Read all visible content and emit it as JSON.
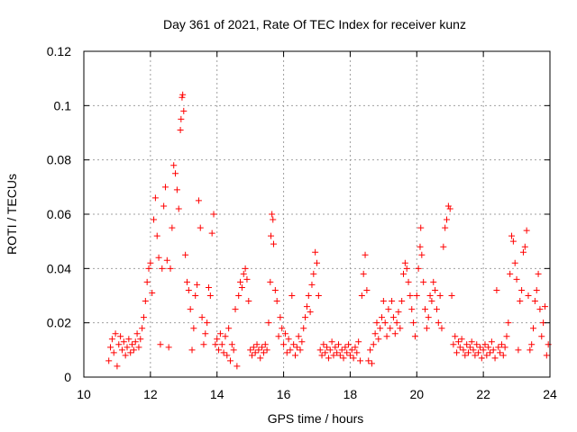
{
  "chart_data": {
    "type": "scatter",
    "title": "Day 361 of 2021, Rate Of TEC Index for receiver kunz",
    "xlabel": "GPS time / hours",
    "ylabel": "ROTI / TECUs",
    "xlim": [
      10,
      24
    ],
    "ylim": [
      0,
      0.12
    ],
    "x_ticks": [
      10,
      12,
      14,
      16,
      18,
      20,
      22,
      24
    ],
    "y_ticks": [
      0,
      0.02,
      0.04,
      0.06,
      0.08,
      0.1,
      0.12
    ],
    "x_tick_labels": [
      "10",
      "12",
      "14",
      "16",
      "18",
      "20",
      "22",
      "24"
    ],
    "y_tick_labels": [
      "0",
      "0.02",
      "0.04",
      "0.06",
      "0.08",
      "0.1",
      "0.12"
    ],
    "grid": true,
    "marker": "+",
    "color": "#ff0000",
    "series": [
      {
        "points": [
          [
            10.75,
            0.006
          ],
          [
            10.8,
            0.011
          ],
          [
            10.85,
            0.014
          ],
          [
            10.9,
            0.009
          ],
          [
            10.95,
            0.016
          ],
          [
            11.0,
            0.004
          ],
          [
            11.05,
            0.012
          ],
          [
            11.1,
            0.015
          ],
          [
            11.15,
            0.01
          ],
          [
            11.2,
            0.013
          ],
          [
            11.25,
            0.008
          ],
          [
            11.3,
            0.011
          ],
          [
            11.35,
            0.014
          ],
          [
            11.4,
            0.009
          ],
          [
            11.45,
            0.012
          ],
          [
            11.5,
            0.01
          ],
          [
            11.55,
            0.013
          ],
          [
            11.6,
            0.016
          ],
          [
            11.65,
            0.011
          ],
          [
            11.7,
            0.014
          ],
          [
            11.75,
            0.018
          ],
          [
            11.8,
            0.022
          ],
          [
            11.85,
            0.028
          ],
          [
            11.9,
            0.035
          ],
          [
            11.95,
            0.04
          ],
          [
            12.0,
            0.042
          ],
          [
            12.05,
            0.031
          ],
          [
            12.1,
            0.058
          ],
          [
            12.15,
            0.066
          ],
          [
            12.2,
            0.052
          ],
          [
            12.25,
            0.044
          ],
          [
            12.3,
            0.012
          ],
          [
            12.35,
            0.04
          ],
          [
            12.4,
            0.063
          ],
          [
            12.45,
            0.07
          ],
          [
            12.5,
            0.043
          ],
          [
            12.55,
            0.011
          ],
          [
            12.6,
            0.04
          ],
          [
            12.65,
            0.055
          ],
          [
            12.7,
            0.078
          ],
          [
            12.75,
            0.075
          ],
          [
            12.8,
            0.069
          ],
          [
            12.85,
            0.062
          ],
          [
            12.9,
            0.091
          ],
          [
            12.92,
            0.095
          ],
          [
            12.95,
            0.103
          ],
          [
            12.97,
            0.104
          ],
          [
            13.0,
            0.098
          ],
          [
            13.05,
            0.045
          ],
          [
            13.1,
            0.035
          ],
          [
            13.15,
            0.032
          ],
          [
            13.2,
            0.025
          ],
          [
            13.25,
            0.01
          ],
          [
            13.3,
            0.018
          ],
          [
            13.35,
            0.03
          ],
          [
            13.4,
            0.034
          ],
          [
            13.45,
            0.065
          ],
          [
            13.5,
            0.055
          ],
          [
            13.55,
            0.022
          ],
          [
            13.6,
            0.012
          ],
          [
            13.65,
            0.016
          ],
          [
            13.7,
            0.02
          ],
          [
            13.75,
            0.033
          ],
          [
            13.8,
            0.03
          ],
          [
            13.85,
            0.053
          ],
          [
            13.9,
            0.06
          ],
          [
            13.95,
            0.012
          ],
          [
            14.0,
            0.014
          ],
          [
            14.05,
            0.01
          ],
          [
            14.1,
            0.016
          ],
          [
            14.15,
            0.012
          ],
          [
            14.2,
            0.009
          ],
          [
            14.25,
            0.015
          ],
          [
            14.3,
            0.008
          ],
          [
            14.35,
            0.018
          ],
          [
            14.4,
            0.006
          ],
          [
            14.45,
            0.012
          ],
          [
            14.5,
            0.01
          ],
          [
            14.55,
            0.025
          ],
          [
            14.6,
            0.004
          ],
          [
            14.65,
            0.03
          ],
          [
            14.7,
            0.035
          ],
          [
            14.75,
            0.033
          ],
          [
            14.8,
            0.038
          ],
          [
            14.85,
            0.04
          ],
          [
            14.9,
            0.036
          ],
          [
            14.95,
            0.028
          ],
          [
            15.0,
            0.01
          ],
          [
            15.05,
            0.008
          ],
          [
            15.1,
            0.011
          ],
          [
            15.15,
            0.009
          ],
          [
            15.2,
            0.012
          ],
          [
            15.25,
            0.01
          ],
          [
            15.3,
            0.007
          ],
          [
            15.35,
            0.011
          ],
          [
            15.4,
            0.009
          ],
          [
            15.45,
            0.012
          ],
          [
            15.5,
            0.01
          ],
          [
            15.55,
            0.02
          ],
          [
            15.6,
            0.035
          ],
          [
            15.62,
            0.052
          ],
          [
            15.65,
            0.06
          ],
          [
            15.68,
            0.058
          ],
          [
            15.7,
            0.049
          ],
          [
            15.75,
            0.032
          ],
          [
            15.8,
            0.028
          ],
          [
            15.85,
            0.015
          ],
          [
            15.9,
            0.022
          ],
          [
            15.95,
            0.018
          ],
          [
            16.0,
            0.012
          ],
          [
            16.05,
            0.016
          ],
          [
            16.1,
            0.009
          ],
          [
            16.15,
            0.014
          ],
          [
            16.2,
            0.01
          ],
          [
            16.25,
            0.03
          ],
          [
            16.3,
            0.012
          ],
          [
            16.35,
            0.008
          ],
          [
            16.4,
            0.011
          ],
          [
            16.45,
            0.015
          ],
          [
            16.5,
            0.01
          ],
          [
            16.55,
            0.013
          ],
          [
            16.6,
            0.018
          ],
          [
            16.65,
            0.022
          ],
          [
            16.7,
            0.026
          ],
          [
            16.75,
            0.03
          ],
          [
            16.8,
            0.024
          ],
          [
            16.85,
            0.034
          ],
          [
            16.9,
            0.038
          ],
          [
            16.95,
            0.046
          ],
          [
            17.0,
            0.042
          ],
          [
            17.05,
            0.03
          ],
          [
            17.1,
            0.01
          ],
          [
            17.15,
            0.008
          ],
          [
            17.2,
            0.012
          ],
          [
            17.25,
            0.009
          ],
          [
            17.3,
            0.011
          ],
          [
            17.35,
            0.007
          ],
          [
            17.4,
            0.01
          ],
          [
            17.45,
            0.013
          ],
          [
            17.5,
            0.008
          ],
          [
            17.55,
            0.011
          ],
          [
            17.6,
            0.009
          ],
          [
            17.65,
            0.012
          ],
          [
            17.7,
            0.008
          ],
          [
            17.75,
            0.01
          ],
          [
            17.8,
            0.007
          ],
          [
            17.85,
            0.011
          ],
          [
            17.9,
            0.009
          ],
          [
            17.95,
            0.012
          ],
          [
            18.0,
            0.008
          ],
          [
            18.05,
            0.01
          ],
          [
            18.1,
            0.007
          ],
          [
            18.15,
            0.011
          ],
          [
            18.2,
            0.009
          ],
          [
            18.25,
            0.013
          ],
          [
            18.3,
            0.006
          ],
          [
            18.35,
            0.03
          ],
          [
            18.4,
            0.038
          ],
          [
            18.45,
            0.045
          ],
          [
            18.5,
            0.032
          ],
          [
            18.55,
            0.006
          ],
          [
            18.6,
            0.01
          ],
          [
            18.65,
            0.005
          ],
          [
            18.7,
            0.012
          ],
          [
            18.75,
            0.016
          ],
          [
            18.8,
            0.02
          ],
          [
            18.85,
            0.014
          ],
          [
            18.9,
            0.018
          ],
          [
            18.95,
            0.022
          ],
          [
            19.0,
            0.028
          ],
          [
            19.05,
            0.02
          ],
          [
            19.1,
            0.015
          ],
          [
            19.15,
            0.025
          ],
          [
            19.2,
            0.018
          ],
          [
            19.25,
            0.028
          ],
          [
            19.3,
            0.022
          ],
          [
            19.35,
            0.016
          ],
          [
            19.4,
            0.02
          ],
          [
            19.45,
            0.024
          ],
          [
            19.5,
            0.018
          ],
          [
            19.55,
            0.028
          ],
          [
            19.6,
            0.038
          ],
          [
            19.65,
            0.042
          ],
          [
            19.7,
            0.04
          ],
          [
            19.75,
            0.035
          ],
          [
            19.8,
            0.03
          ],
          [
            19.85,
            0.025
          ],
          [
            19.9,
            0.02
          ],
          [
            19.95,
            0.015
          ],
          [
            20.0,
            0.03
          ],
          [
            20.05,
            0.04
          ],
          [
            20.1,
            0.048
          ],
          [
            20.12,
            0.055
          ],
          [
            20.15,
            0.045
          ],
          [
            20.2,
            0.035
          ],
          [
            20.25,
            0.025
          ],
          [
            20.3,
            0.018
          ],
          [
            20.35,
            0.022
          ],
          [
            20.4,
            0.03
          ],
          [
            20.45,
            0.028
          ],
          [
            20.5,
            0.035
          ],
          [
            20.55,
            0.032
          ],
          [
            20.6,
            0.025
          ],
          [
            20.65,
            0.02
          ],
          [
            20.7,
            0.03
          ],
          [
            20.75,
            0.018
          ],
          [
            20.8,
            0.048
          ],
          [
            20.85,
            0.055
          ],
          [
            20.9,
            0.058
          ],
          [
            20.95,
            0.063
          ],
          [
            21.0,
            0.062
          ],
          [
            21.05,
            0.03
          ],
          [
            21.1,
            0.012
          ],
          [
            21.15,
            0.015
          ],
          [
            21.2,
            0.009
          ],
          [
            21.25,
            0.013
          ],
          [
            21.3,
            0.011
          ],
          [
            21.35,
            0.014
          ],
          [
            21.4,
            0.01
          ],
          [
            21.45,
            0.008
          ],
          [
            21.5,
            0.012
          ],
          [
            21.55,
            0.009
          ],
          [
            21.6,
            0.011
          ],
          [
            21.65,
            0.013
          ],
          [
            21.7,
            0.01
          ],
          [
            21.75,
            0.008
          ],
          [
            21.8,
            0.012
          ],
          [
            21.85,
            0.009
          ],
          [
            21.9,
            0.011
          ],
          [
            21.95,
            0.007
          ],
          [
            22.0,
            0.01
          ],
          [
            22.05,
            0.012
          ],
          [
            22.1,
            0.008
          ],
          [
            22.15,
            0.011
          ],
          [
            22.2,
            0.009
          ],
          [
            22.25,
            0.013
          ],
          [
            22.3,
            0.01
          ],
          [
            22.35,
            0.007
          ],
          [
            22.4,
            0.032
          ],
          [
            22.45,
            0.011
          ],
          [
            22.5,
            0.009
          ],
          [
            22.55,
            0.012
          ],
          [
            22.6,
            0.008
          ],
          [
            22.65,
            0.011
          ],
          [
            22.7,
            0.015
          ],
          [
            22.75,
            0.02
          ],
          [
            22.8,
            0.038
          ],
          [
            22.85,
            0.052
          ],
          [
            22.9,
            0.05
          ],
          [
            22.95,
            0.042
          ],
          [
            23.0,
            0.036
          ],
          [
            23.05,
            0.01
          ],
          [
            23.1,
            0.028
          ],
          [
            23.15,
            0.032
          ],
          [
            23.2,
            0.046
          ],
          [
            23.25,
            0.048
          ],
          [
            23.3,
            0.054
          ],
          [
            23.35,
            0.03
          ],
          [
            23.4,
            0.01
          ],
          [
            23.45,
            0.012
          ],
          [
            23.5,
            0.018
          ],
          [
            23.55,
            0.028
          ],
          [
            23.6,
            0.032
          ],
          [
            23.65,
            0.038
          ],
          [
            23.7,
            0.025
          ],
          [
            23.75,
            0.015
          ],
          [
            23.8,
            0.02
          ],
          [
            23.85,
            0.026
          ],
          [
            23.9,
            0.008
          ],
          [
            23.95,
            0.012
          ]
        ]
      }
    ]
  }
}
